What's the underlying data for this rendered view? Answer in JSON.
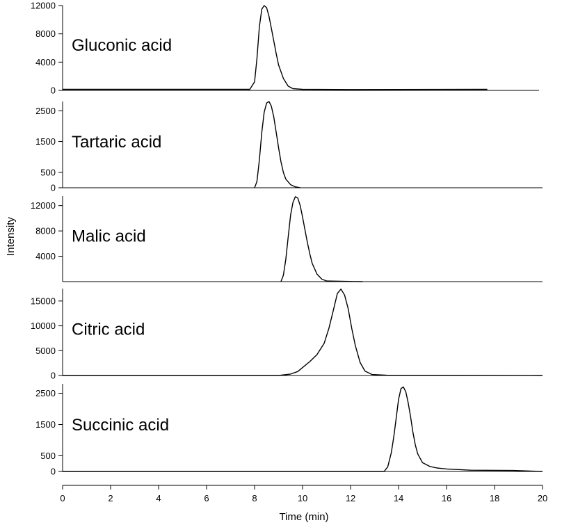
{
  "chart_data": {
    "type": "line",
    "xlabel": "Time (min)",
    "ylabel": "Intensity",
    "xlim": [
      0,
      20
    ],
    "xticks": [
      "0",
      "2",
      "4",
      "6",
      "8",
      "10",
      "12",
      "14",
      "16",
      "18",
      "20"
    ],
    "line_color": "#000000",
    "grid": false,
    "panels": [
      {
        "label": "Gluconic acid",
        "ylim": [
          0,
          12000
        ],
        "yticks": [
          "12000",
          "8000",
          "4000",
          "0"
        ],
        "series": [
          {
            "x": [
              0,
              7.8,
              8.0,
              8.1,
              8.2,
              8.3,
              8.4,
              8.5,
              8.6,
              8.7,
              8.8,
              8.9,
              9.0,
              9.2,
              9.4,
              9.6,
              10.0,
              12.0,
              17.7
            ],
            "y": [
              150,
              150,
              1200,
              4500,
              9000,
              11500,
              12000,
              11700,
              10500,
              8800,
              7000,
              5200,
              3600,
              1700,
              600,
              250,
              150,
              120,
              150
            ]
          }
        ]
      },
      {
        "label": "Tartaric acid",
        "ylim": [
          0,
          2800
        ],
        "yticks": [
          "2500",
          "1500",
          "500",
          "0"
        ],
        "series": [
          {
            "x": [
              8.0,
              8.1,
              8.2,
              8.3,
              8.4,
              8.5,
              8.6,
              8.7,
              8.8,
              8.9,
              9.0,
              9.1,
              9.2,
              9.3,
              9.5,
              9.7,
              9.9
            ],
            "y": [
              0,
              200,
              900,
              1800,
              2450,
              2750,
              2800,
              2650,
              2300,
              1800,
              1300,
              850,
              500,
              280,
              100,
              30,
              0
            ]
          }
        ]
      },
      {
        "label": "Malic acid",
        "ylim": [
          0,
          13500
        ],
        "yticks": [
          "12000",
          "8000",
          "4000"
        ],
        "series": [
          {
            "x": [
              9.1,
              9.2,
              9.3,
              9.4,
              9.5,
              9.6,
              9.7,
              9.8,
              9.9,
              10.0,
              10.1,
              10.2,
              10.3,
              10.4,
              10.6,
              10.8,
              11.0,
              12.5
            ],
            "y": [
              0,
              1000,
              3500,
              7000,
              10500,
              12500,
              13400,
              13200,
              12000,
              10200,
              8200,
              6200,
              4400,
              2900,
              1200,
              400,
              100,
              0
            ]
          }
        ]
      },
      {
        "label": "Citric acid",
        "ylim": [
          0,
          17500
        ],
        "yticks": [
          "15000",
          "10000",
          "5000",
          "0"
        ],
        "series": [
          {
            "x": [
              0,
              9.0,
              9.5,
              9.8,
              10.0,
              10.3,
              10.6,
              10.9,
              11.1,
              11.3,
              11.45,
              11.6,
              11.75,
              11.9,
              12.05,
              12.2,
              12.4,
              12.6,
              12.9,
              13.5,
              20.0
            ],
            "y": [
              0,
              0,
              300,
              800,
              1600,
              2800,
              4200,
              6500,
              9500,
              13500,
              16500,
              17400,
              16200,
              13500,
              9500,
              6000,
              2600,
              900,
              200,
              50,
              0
            ]
          }
        ]
      },
      {
        "label": "Succinic acid",
        "ylim": [
          0,
          2800
        ],
        "yticks": [
          "2500",
          "1500",
          "500",
          "0"
        ],
        "series": [
          {
            "x": [
              0,
              13.4,
              13.55,
              13.7,
              13.8,
              13.9,
              14.0,
              14.1,
              14.2,
              14.3,
              14.4,
              14.5,
              14.6,
              14.7,
              14.8,
              15.0,
              15.3,
              15.6,
              16.0,
              17.0,
              18.8,
              20.0
            ],
            "y": [
              0,
              0,
              150,
              600,
              1100,
              1700,
              2300,
              2650,
              2700,
              2550,
              2200,
              1750,
              1250,
              850,
              560,
              280,
              160,
              110,
              80,
              40,
              30,
              0
            ]
          }
        ]
      }
    ]
  }
}
